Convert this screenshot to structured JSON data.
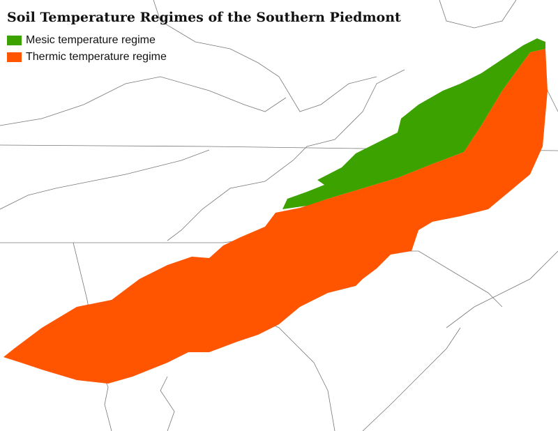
{
  "title": "Soil Temperature Regimes of the Southern Piedmont",
  "legend": [
    {
      "label": "Mesic temperature regime",
      "color": "#3ca200"
    },
    {
      "label": "Thermic temperature regime",
      "color": "#ff5500"
    }
  ]
}
